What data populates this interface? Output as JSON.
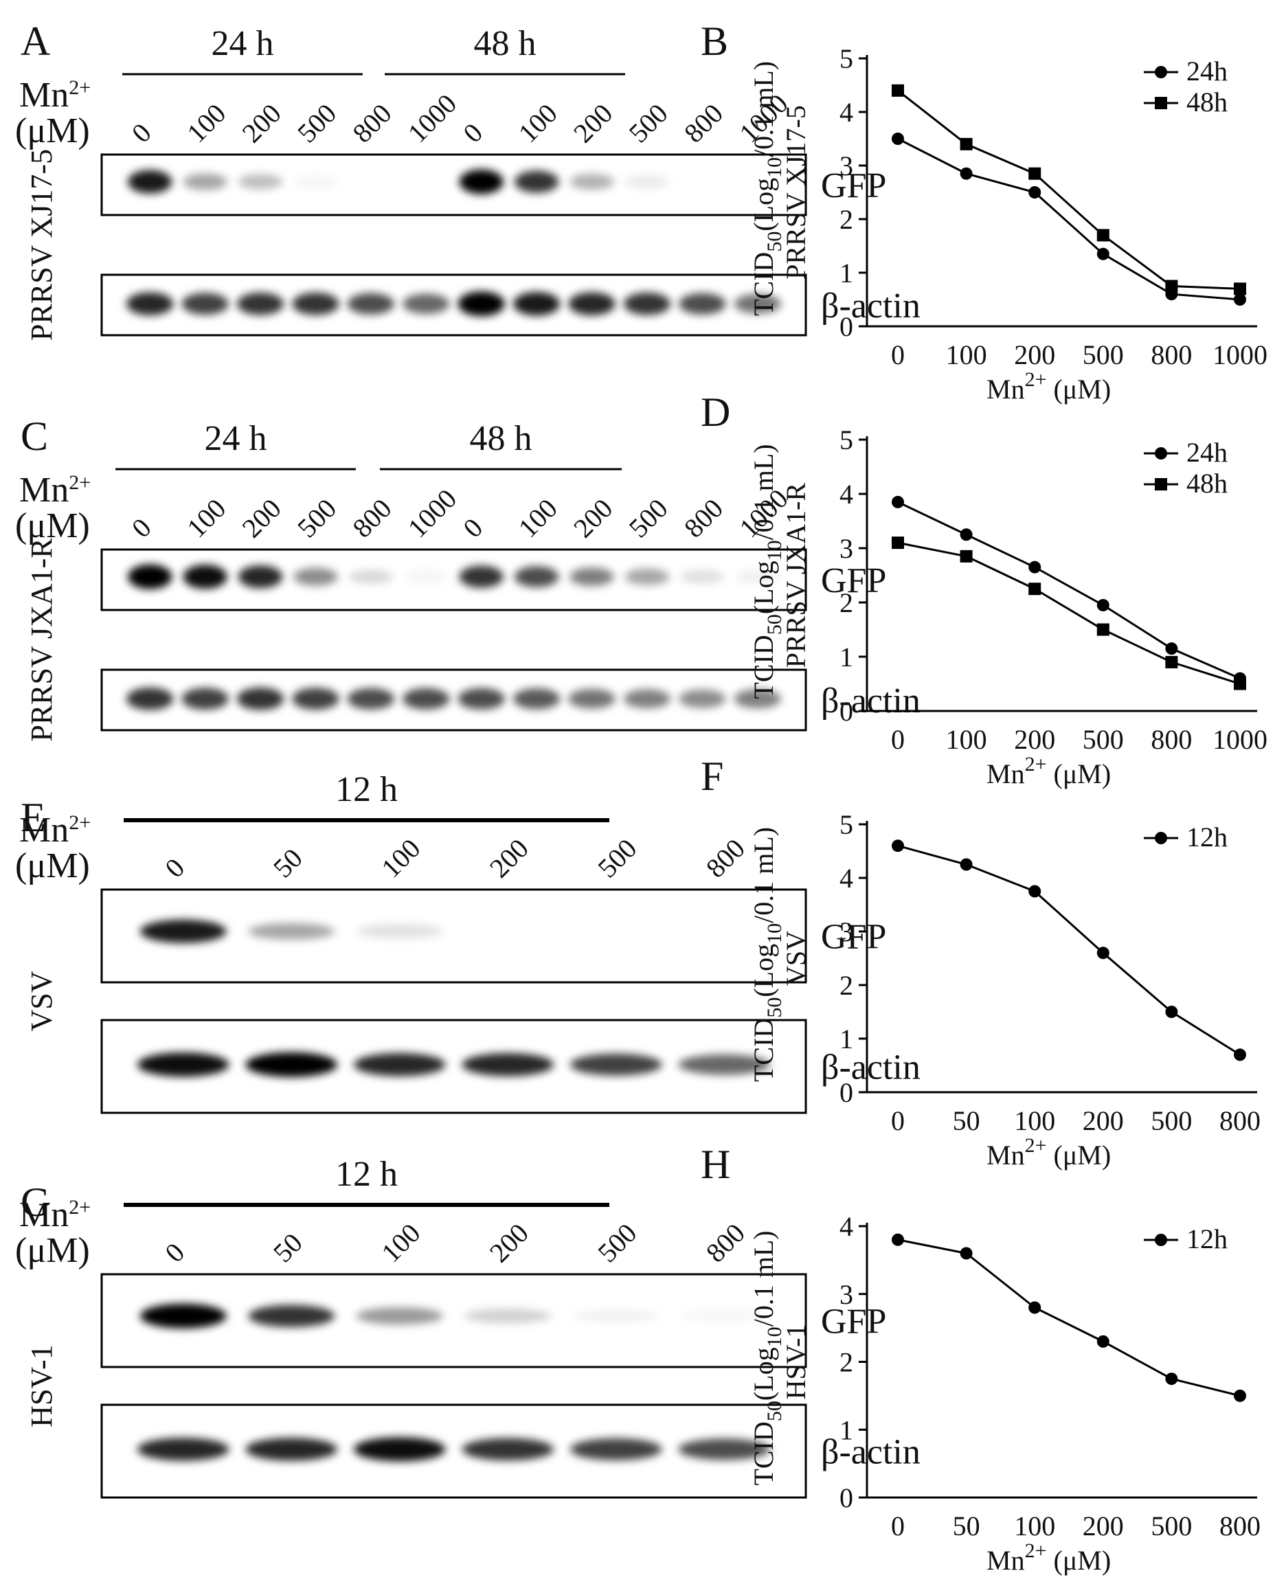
{
  "blots": [
    {
      "panel": "A",
      "virus": "PRRSV XJ17-5",
      "mn_label": "Mn2+",
      "unit_label": "(μM)",
      "group_labels": [
        "24 h",
        "48 h"
      ],
      "concentrations": [
        "0",
        "100",
        "200",
        "500",
        "800",
        "1000",
        "0",
        "100",
        "200",
        "500",
        "800",
        "1000"
      ],
      "gfp_label": "GFP",
      "actin_label": "β-actin",
      "gfp_intensity": [
        0.9,
        0.35,
        0.25,
        0.04,
        0.0,
        0.0,
        1.0,
        0.8,
        0.3,
        0.08,
        0.0,
        0.0
      ],
      "actin_intensity": [
        0.85,
        0.75,
        0.8,
        0.8,
        0.7,
        0.6,
        1.0,
        0.9,
        0.85,
        0.8,
        0.7,
        0.55
      ]
    },
    {
      "panel": "C",
      "virus": "PRRSV JXA1-R",
      "mn_label": "Mn2+",
      "unit_label": "(μM)",
      "group_labels": [
        "24 h",
        "48 h"
      ],
      "concentrations": [
        "0",
        "100",
        "200",
        "500",
        "800",
        "1000",
        "0",
        "100",
        "200",
        "500",
        "800",
        "1000"
      ],
      "gfp_label": "GFP",
      "actin_label": "β-actin",
      "gfp_intensity": [
        1.0,
        0.95,
        0.85,
        0.45,
        0.15,
        0.04,
        0.8,
        0.7,
        0.5,
        0.35,
        0.12,
        0.06
      ],
      "actin_intensity": [
        0.8,
        0.75,
        0.8,
        0.75,
        0.7,
        0.7,
        0.7,
        0.65,
        0.55,
        0.5,
        0.45,
        0.5
      ]
    },
    {
      "panel": "E",
      "virus": "VSV",
      "mn_label": "Mn2+",
      "unit_label": "(μM)",
      "group_labels": [
        "12 h"
      ],
      "concentrations": [
        "0",
        "50",
        "100",
        "200",
        "500",
        "800"
      ],
      "gfp_label": "GFP",
      "actin_label": "β-actin",
      "gfp_intensity": [
        0.9,
        0.35,
        0.12,
        0.0,
        0.0,
        0.0
      ],
      "actin_intensity": [
        0.95,
        1.0,
        0.85,
        0.85,
        0.75,
        0.6
      ]
    },
    {
      "panel": "G",
      "virus": "HSV-1",
      "mn_label": "Mn2+",
      "unit_label": "(μM)",
      "group_labels": [
        "12 h"
      ],
      "concentrations": [
        "0",
        "50",
        "100",
        "200",
        "500",
        "800"
      ],
      "gfp_label": "GFP",
      "actin_label": "β-actin",
      "gfp_intensity": [
        1.0,
        0.8,
        0.4,
        0.18,
        0.05,
        0.03
      ],
      "actin_intensity": [
        0.85,
        0.85,
        0.95,
        0.8,
        0.75,
        0.7
      ]
    }
  ],
  "chart_data": [
    {
      "panel": "B",
      "type": "line",
      "ylabel": "TCID50(Log10/0.1 mL)",
      "ylabel2": "PRRSV XJ17-5",
      "xlabel": "Mn2+ (μM)",
      "categories": [
        "0",
        "100",
        "200",
        "500",
        "800",
        "1000"
      ],
      "ylim": [
        0,
        5
      ],
      "yticks": [
        0,
        1,
        2,
        3,
        4,
        5
      ],
      "series": [
        {
          "name": "24h",
          "marker": "circle",
          "values": [
            3.5,
            2.85,
            2.5,
            1.35,
            0.6,
            0.5
          ]
        },
        {
          "name": "48h",
          "marker": "square",
          "values": [
            4.4,
            3.4,
            2.85,
            1.7,
            0.75,
            0.7
          ]
        }
      ]
    },
    {
      "panel": "D",
      "type": "line",
      "ylabel": "TCID50(Log10/0.1 mL)",
      "ylabel2": "PRRSV JXA1-R",
      "xlabel": "Mn2+ (μM)",
      "categories": [
        "0",
        "100",
        "200",
        "500",
        "800",
        "1000"
      ],
      "ylim": [
        0,
        5
      ],
      "yticks": [
        0,
        1,
        2,
        3,
        4,
        5
      ],
      "series": [
        {
          "name": "24h",
          "marker": "circle",
          "values": [
            3.85,
            3.25,
            2.65,
            1.95,
            1.15,
            0.6
          ]
        },
        {
          "name": "48h",
          "marker": "square",
          "values": [
            3.1,
            2.85,
            2.25,
            1.5,
            0.9,
            0.5
          ]
        }
      ]
    },
    {
      "panel": "F",
      "type": "line",
      "ylabel": "TCID50(Log10/0.1 mL)",
      "ylabel2": "VSV",
      "xlabel": "Mn2+ (μM)",
      "categories": [
        "0",
        "50",
        "100",
        "200",
        "500",
        "800"
      ],
      "ylim": [
        0,
        5
      ],
      "yticks": [
        0,
        1,
        2,
        3,
        4,
        5
      ],
      "series": [
        {
          "name": "12h",
          "marker": "circle",
          "values": [
            4.6,
            4.25,
            3.75,
            2.6,
            1.5,
            0.7
          ]
        }
      ]
    },
    {
      "panel": "H",
      "type": "line",
      "ylabel": "TCID50(Log10/0.1 mL)",
      "ylabel2": "HSV-1",
      "xlabel": "Mn2+ (μM)",
      "categories": [
        "0",
        "50",
        "100",
        "200",
        "500",
        "800"
      ],
      "ylim": [
        0,
        4
      ],
      "yticks": [
        0,
        1,
        2,
        3,
        4
      ],
      "series": [
        {
          "name": "12h",
          "marker": "circle",
          "values": [
            3.8,
            3.6,
            2.8,
            2.3,
            1.75,
            1.5
          ]
        }
      ]
    }
  ]
}
